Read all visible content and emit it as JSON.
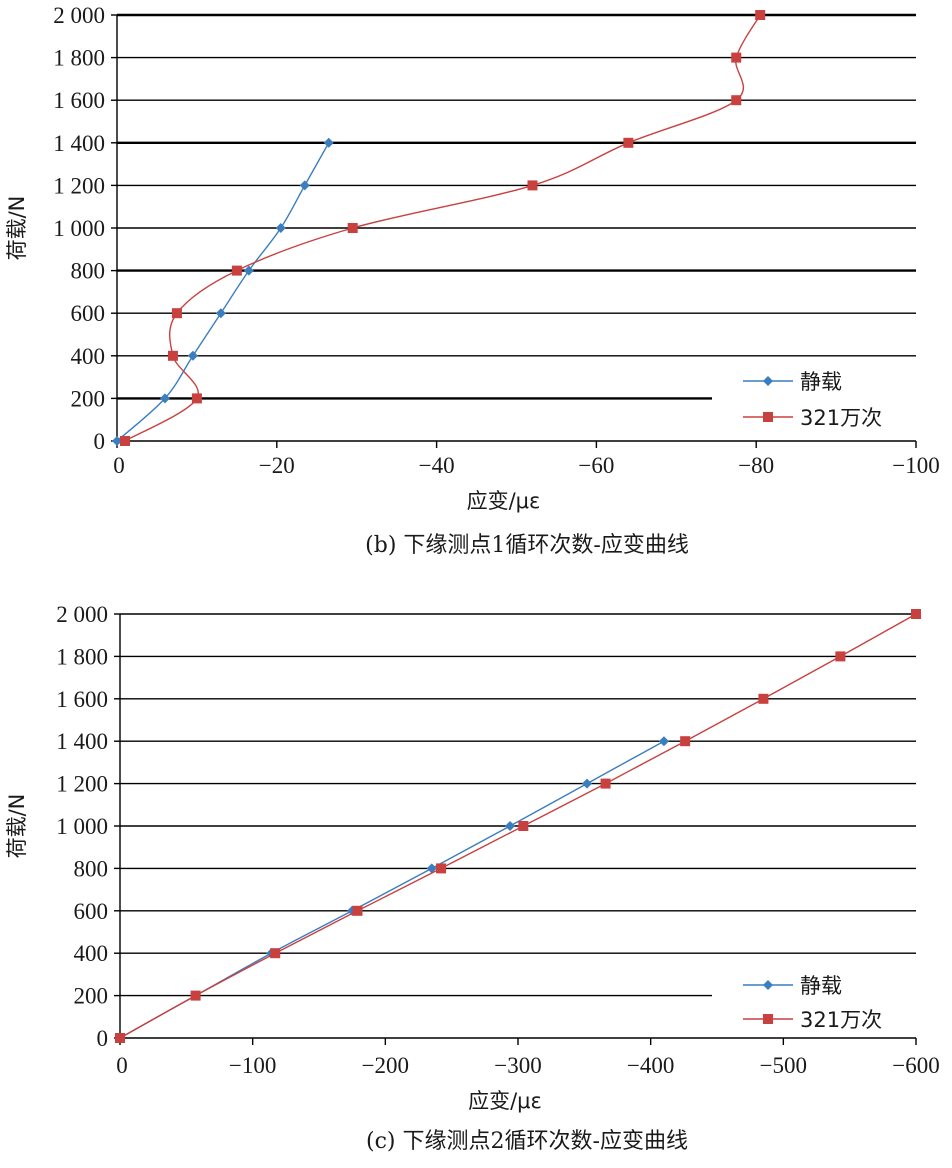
{
  "chart_data": [
    {
      "type": "line",
      "caption": "(b) 下缘测点1循环次数-应变曲线",
      "xlabel": "应变/με",
      "ylabel": "荷载/N",
      "xlim": [
        0,
        -100
      ],
      "ylim": [
        0,
        2000
      ],
      "x_ticks": [
        0,
        -20,
        -40,
        -60,
        -80,
        -100
      ],
      "x_tick_labels": [
        "0",
        "−20",
        "−40",
        "−60",
        "−80",
        "−100"
      ],
      "y_ticks": [
        0,
        200,
        400,
        600,
        800,
        1000,
        1200,
        1400,
        1600,
        1800,
        2000
      ],
      "y_tick_labels": [
        "0",
        "200",
        "400",
        "600",
        "800",
        "1 000",
        "1 200",
        "1 400",
        "1 600",
        "1 800",
        "2 000"
      ],
      "grid": "horizontal",
      "legend_position": "bottom-right",
      "series": [
        {
          "name": "静载",
          "color": "#3a7ebf",
          "marker": "diamond",
          "points": [
            [
              0,
              0
            ],
            [
              -6,
              200
            ],
            [
              -9.5,
              400
            ],
            [
              -13,
              600
            ],
            [
              -16.5,
              800
            ],
            [
              -20.5,
              1000
            ],
            [
              -23.5,
              1200
            ],
            [
              -26.5,
              1400
            ]
          ]
        },
        {
          "name": "321万次",
          "color": "#c8413f",
          "marker": "square",
          "points": [
            [
              -1,
              0
            ],
            [
              -10,
              200
            ],
            [
              -7,
              400
            ],
            [
              -7.5,
              600
            ],
            [
              -15,
              800
            ],
            [
              -29.5,
              1000
            ],
            [
              -52,
              1200
            ],
            [
              -64,
              1400
            ],
            [
              -77.5,
              1600
            ],
            [
              -77.5,
              1800
            ],
            [
              -80.5,
              2000
            ]
          ]
        }
      ]
    },
    {
      "type": "line",
      "caption": "(c) 下缘测点2循环次数-应变曲线",
      "xlabel": "应变/με",
      "ylabel": "荷载/N",
      "xlim": [
        0,
        -600
      ],
      "ylim": [
        0,
        2000
      ],
      "x_ticks": [
        0,
        -100,
        -200,
        -300,
        -400,
        -500,
        -600
      ],
      "x_tick_labels": [
        "0",
        "−100",
        "−200",
        "−300",
        "−400",
        "−500",
        "−600"
      ],
      "y_ticks": [
        0,
        200,
        400,
        600,
        800,
        1000,
        1200,
        1400,
        1600,
        1800,
        2000
      ],
      "y_tick_labels": [
        "0",
        "200",
        "400",
        "600",
        "800",
        "1 000",
        "1 200",
        "1 400",
        "1 600",
        "1 800",
        "2 000"
      ],
      "grid": "horizontal",
      "legend_position": "bottom-right",
      "series": [
        {
          "name": "静载",
          "color": "#3a7ebf",
          "marker": "diamond",
          "points": [
            [
              0,
              0
            ],
            [
              -57,
              200
            ],
            [
              -114,
              400
            ],
            [
              -175,
              600
            ],
            [
              -235,
              800
            ],
            [
              -294,
              1000
            ],
            [
              -352,
              1200
            ],
            [
              -410,
              1400
            ]
          ]
        },
        {
          "name": "321万次",
          "color": "#c8413f",
          "marker": "square",
          "points": [
            [
              0,
              0
            ],
            [
              -57,
              200
            ],
            [
              -117,
              400
            ],
            [
              -179,
              600
            ],
            [
              -242,
              800
            ],
            [
              -304,
              1000
            ],
            [
              -366,
              1200
            ],
            [
              -426,
              1400
            ],
            [
              -485,
              1600
            ],
            [
              -543,
              1800
            ],
            [
              -600,
              2000
            ]
          ]
        }
      ]
    }
  ]
}
